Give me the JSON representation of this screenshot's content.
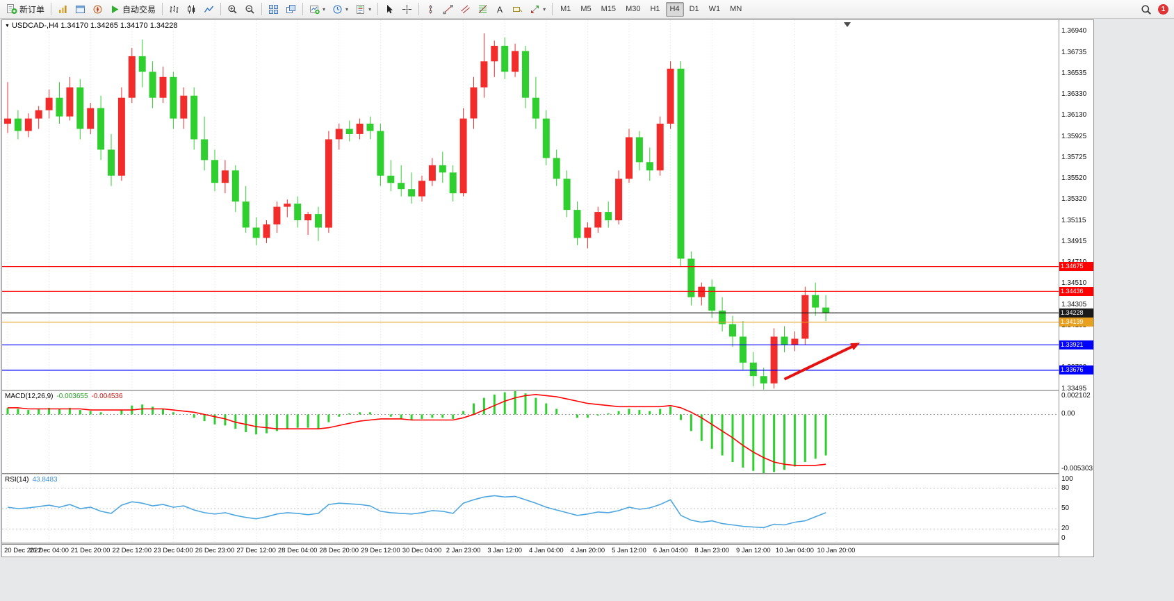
{
  "toolbar": {
    "notification_count": "1",
    "groups": [
      {
        "buttons": [
          {
            "name": "new-order",
            "icon": "new-order",
            "label": "新订单"
          }
        ]
      },
      {
        "buttons": [
          {
            "name": "market-watch",
            "icon": "market-watch"
          },
          {
            "name": "data-window",
            "icon": "data-window"
          },
          {
            "name": "navigator",
            "icon": "navigator"
          },
          {
            "name": "auto-trading",
            "icon": "auto-trading",
            "label": "自动交易"
          }
        ]
      },
      {
        "buttons": [
          {
            "name": "bar-chart-mode",
            "icon": "bars"
          },
          {
            "name": "candle-chart-mode",
            "icon": "candles"
          },
          {
            "name": "line-chart-mode",
            "icon": "line"
          }
        ]
      },
      {
        "buttons": [
          {
            "name": "zoom-in",
            "icon": "zoom-in"
          },
          {
            "name": "zoom-out",
            "icon": "zoom-out"
          }
        ]
      },
      {
        "buttons": [
          {
            "name": "tile-windows",
            "icon": "tile"
          },
          {
            "name": "cascade-windows",
            "icon": "cascade"
          }
        ]
      },
      {
        "buttons": [
          {
            "name": "new-chart",
            "icon": "new-chart",
            "dropdown": true
          },
          {
            "name": "periods",
            "icon": "clock",
            "dropdown": true
          },
          {
            "name": "templates",
            "icon": "template",
            "dropdown": true
          }
        ]
      },
      {
        "buttons": [
          {
            "name": "cursor",
            "icon": "cursor"
          },
          {
            "name": "crosshair",
            "icon": "crosshair"
          }
        ]
      },
      {
        "buttons": [
          {
            "name": "vertical-line",
            "icon": "vline"
          },
          {
            "name": "trendline",
            "icon": "trendline"
          },
          {
            "name": "equidistant-channel",
            "icon": "channel"
          },
          {
            "name": "fibonacci",
            "icon": "fibo"
          },
          {
            "name": "text",
            "icon": "text"
          },
          {
            "name": "text-label",
            "icon": "label"
          },
          {
            "name": "arrows",
            "icon": "arrows",
            "dropdown": true
          }
        ]
      },
      {
        "buttons": [
          {
            "name": "timeframe-m1",
            "label": "M1",
            "tf": true
          },
          {
            "name": "timeframe-m5",
            "label": "M5",
            "tf": true
          },
          {
            "name": "timeframe-m15",
            "label": "M15",
            "tf": true
          },
          {
            "name": "timeframe-m30",
            "label": "M30",
            "tf": true
          },
          {
            "name": "timeframe-h1",
            "label": "H1",
            "tf": true
          },
          {
            "name": "timeframe-h4",
            "label": "H4",
            "tf": true,
            "active": true
          },
          {
            "name": "timeframe-d1",
            "label": "D1",
            "tf": true
          },
          {
            "name": "timeframe-w1",
            "label": "W1",
            "tf": true
          },
          {
            "name": "timeframe-mn",
            "label": "MN",
            "tf": true
          }
        ]
      }
    ]
  },
  "chart": {
    "symbol_label": "USDCAD-,H4",
    "ohlc_label": "1.34170 1.34265 1.34170 1.34228",
    "price_axis_ticks": [
      "1.36940",
      "1.36735",
      "1.36535",
      "1.36330",
      "1.36130",
      "1.35925",
      "1.35725",
      "1.35520",
      "1.35320",
      "1.35115",
      "1.34915",
      "1.34710",
      "1.34510",
      "1.34305",
      "1.34105",
      "1.33900",
      "1.33700",
      "1.33495"
    ]
  },
  "indicators": {
    "macd": {
      "name": "MACD(12,26,9)",
      "value1": "-0.003655",
      "value2": "-0.004536"
    },
    "rsi": {
      "name": "RSI(14)",
      "value": "43.8483"
    }
  },
  "chart_data": [
    {
      "type": "candlestick",
      "symbol": "USDCAD-",
      "timeframe": "H4",
      "up_color": "#f22b2b",
      "down_color": "#2fcf2f",
      "ylim": [
        1.33488,
        1.37047
      ],
      "x_label_every": 4,
      "x_labels": [
        "20 Dec 2022",
        "21 Dec 04:00",
        "21 Dec 20:00",
        "22 Dec 12:00",
        "23 Dec 04:00",
        "26 Dec 23:00",
        "27 Dec 12:00",
        "28 Dec 04:00",
        "28 Dec 20:00",
        "29 Dec 12:00",
        "30 Dec 04:00",
        "2 Jan 23:00",
        "3 Jan 12:00",
        "4 Jan 04:00",
        "4 Jan 20:00",
        "5 Jan 12:00",
        "6 Jan 04:00",
        "8 Jan 23:00",
        "9 Jan 12:00",
        "10 Jan 04:00",
        "10 Jan 20:00"
      ],
      "ohlc": [
        [
          1.3605,
          1.3645,
          1.3596,
          1.361
        ],
        [
          1.361,
          1.3618,
          1.359,
          1.3598
        ],
        [
          1.3598,
          1.3615,
          1.3592,
          1.361
        ],
        [
          1.361,
          1.3622,
          1.36,
          1.3618
        ],
        [
          1.3618,
          1.3638,
          1.361,
          1.363
        ],
        [
          1.363,
          1.3645,
          1.3605,
          1.3612
        ],
        [
          1.3612,
          1.365,
          1.3608,
          1.364
        ],
        [
          1.364,
          1.3648,
          1.359,
          1.36
        ],
        [
          1.36,
          1.3625,
          1.3595,
          1.362
        ],
        [
          1.362,
          1.3632,
          1.357,
          1.358
        ],
        [
          1.358,
          1.3595,
          1.3545,
          1.3555
        ],
        [
          1.3555,
          1.364,
          1.355,
          1.363
        ],
        [
          1.363,
          1.3678,
          1.3625,
          1.367
        ],
        [
          1.367,
          1.3686,
          1.364,
          1.3655
        ],
        [
          1.3655,
          1.3665,
          1.362,
          1.363
        ],
        [
          1.363,
          1.366,
          1.3625,
          1.365
        ],
        [
          1.365,
          1.3655,
          1.36,
          1.361
        ],
        [
          1.361,
          1.364,
          1.36,
          1.3632
        ],
        [
          1.3632,
          1.364,
          1.358,
          1.359
        ],
        [
          1.359,
          1.3612,
          1.356,
          1.357
        ],
        [
          1.357,
          1.358,
          1.354,
          1.3548
        ],
        [
          1.3548,
          1.357,
          1.3538,
          1.356
        ],
        [
          1.356,
          1.3565,
          1.352,
          1.353
        ],
        [
          1.353,
          1.3545,
          1.35,
          1.3505
        ],
        [
          1.3505,
          1.3515,
          1.3488,
          1.3495
        ],
        [
          1.3495,
          1.3512,
          1.349,
          1.3508
        ],
        [
          1.3508,
          1.353,
          1.35,
          1.3525
        ],
        [
          1.3525,
          1.3532,
          1.3515,
          1.3528
        ],
        [
          1.3528,
          1.3535,
          1.3505,
          1.3512
        ],
        [
          1.3512,
          1.352,
          1.3498,
          1.3518
        ],
        [
          1.3518,
          1.3525,
          1.3492,
          1.3505
        ],
        [
          1.3505,
          1.3598,
          1.35,
          1.359
        ],
        [
          1.359,
          1.3605,
          1.358,
          1.36
        ],
        [
          1.36,
          1.3608,
          1.3588,
          1.3595
        ],
        [
          1.3595,
          1.361,
          1.359,
          1.3605
        ],
        [
          1.3605,
          1.3612,
          1.359,
          1.3598
        ],
        [
          1.3598,
          1.3605,
          1.3545,
          1.3555
        ],
        [
          1.3555,
          1.357,
          1.354,
          1.3548
        ],
        [
          1.3548,
          1.3565,
          1.3535,
          1.3542
        ],
        [
          1.3542,
          1.3558,
          1.3528,
          1.3535
        ],
        [
          1.3535,
          1.3555,
          1.353,
          1.355
        ],
        [
          1.355,
          1.3572,
          1.3545,
          1.3565
        ],
        [
          1.3565,
          1.3578,
          1.3548,
          1.3558
        ],
        [
          1.3558,
          1.3565,
          1.353,
          1.3538
        ],
        [
          1.3538,
          1.362,
          1.3535,
          1.361
        ],
        [
          1.361,
          1.365,
          1.36,
          1.364
        ],
        [
          1.364,
          1.3692,
          1.363,
          1.3665
        ],
        [
          1.3665,
          1.3685,
          1.365,
          1.368
        ],
        [
          1.368,
          1.3688,
          1.3648,
          1.3655
        ],
        [
          1.3655,
          1.3682,
          1.365,
          1.3675
        ],
        [
          1.3675,
          1.368,
          1.362,
          1.363
        ],
        [
          1.363,
          1.365,
          1.36,
          1.361
        ],
        [
          1.361,
          1.3618,
          1.3565,
          1.3572
        ],
        [
          1.3572,
          1.358,
          1.3545,
          1.3552
        ],
        [
          1.3552,
          1.356,
          1.3515,
          1.3522
        ],
        [
          1.3522,
          1.353,
          1.3488,
          1.3495
        ],
        [
          1.3495,
          1.351,
          1.3485,
          1.3505
        ],
        [
          1.3505,
          1.3525,
          1.35,
          1.352
        ],
        [
          1.352,
          1.353,
          1.3505,
          1.3512
        ],
        [
          1.3512,
          1.356,
          1.3508,
          1.3552
        ],
        [
          1.3552,
          1.36,
          1.3548,
          1.3592
        ],
        [
          1.3592,
          1.3598,
          1.356,
          1.3568
        ],
        [
          1.3568,
          1.3582,
          1.355,
          1.356
        ],
        [
          1.356,
          1.3612,
          1.3555,
          1.3605
        ],
        [
          1.3605,
          1.3665,
          1.36,
          1.3658
        ],
        [
          1.3658,
          1.3665,
          1.3468,
          1.3475
        ],
        [
          1.3475,
          1.3482,
          1.343,
          1.3438
        ],
        [
          1.3438,
          1.3452,
          1.343,
          1.3448
        ],
        [
          1.3448,
          1.3455,
          1.3418,
          1.3425
        ],
        [
          1.3425,
          1.3438,
          1.3405,
          1.3412
        ],
        [
          1.3412,
          1.342,
          1.339,
          1.34
        ],
        [
          1.34,
          1.3415,
          1.3368,
          1.3375
        ],
        [
          1.3375,
          1.3385,
          1.3352,
          1.3362
        ],
        [
          1.3362,
          1.337,
          1.3349,
          1.3355
        ],
        [
          1.3355,
          1.3408,
          1.335,
          1.34
        ],
        [
          1.34,
          1.341,
          1.3385,
          1.3392
        ],
        [
          1.3392,
          1.3405,
          1.3386,
          1.3398
        ],
        [
          1.3398,
          1.3448,
          1.3392,
          1.344
        ],
        [
          1.344,
          1.3452,
          1.342,
          1.3428
        ],
        [
          1.3428,
          1.344,
          1.3415,
          1.34228
        ]
      ],
      "hlines": [
        {
          "value": 1.34675,
          "color": "#ff0000",
          "label": "1.34675"
        },
        {
          "value": 1.34436,
          "color": "#ff0000",
          "label": "1.34436"
        },
        {
          "value": 1.34228,
          "color": "#1a1a1a",
          "label": "1.34228",
          "style": "current-price"
        },
        {
          "value": 1.34139,
          "color": "#e8a020",
          "label": "1.34139"
        },
        {
          "value": 1.33921,
          "color": "#0000ff",
          "label": "1.33921"
        },
        {
          "value": 1.33676,
          "color": "#0000ff",
          "label": "1.33676"
        }
      ],
      "arrow": {
        "from_bar": 75,
        "from_price": 1.3359,
        "to_bar": 82.3,
        "to_price": 1.3394,
        "color": "#e51212"
      }
    },
    {
      "type": "macd",
      "name": "MACD(12,26,9)",
      "histogram_color": "#2fcf2f",
      "signal_color": "#ff0000",
      "ylim": [
        -0.005303,
        0.002102
      ],
      "yticks": [
        {
          "v": 0.002102,
          "label": "0.002102"
        },
        {
          "v": 0,
          "label": "0.00"
        },
        {
          "v": -0.005303,
          "label": "-0.005303"
        }
      ],
      "histogram": [
        0.0006,
        0.0005,
        0.0004,
        0.0005,
        0.0006,
        0.0005,
        0.0006,
        0.0004,
        0.0003,
        0.0002,
        0.0,
        0.0004,
        0.0008,
        0.0009,
        0.0007,
        0.0005,
        0.0002,
        0.0,
        -0.0003,
        -0.0006,
        -0.0009,
        -0.001,
        -0.0013,
        -0.0016,
        -0.0018,
        -0.0017,
        -0.0015,
        -0.0013,
        -0.0012,
        -0.0012,
        -0.0013,
        -0.0007,
        -0.0002,
        0.0001,
        0.0002,
        0.0002,
        0.0,
        -0.0002,
        -0.0004,
        -0.0005,
        -0.0004,
        -0.0003,
        -0.0003,
        -0.0004,
        0.0003,
        0.001,
        0.0015,
        0.0018,
        0.002,
        0.0021,
        0.0019,
        0.0015,
        0.001,
        0.0005,
        0.0,
        -0.0003,
        -0.0003,
        -0.0001,
        0.0001,
        0.0003,
        0.0005,
        0.0004,
        0.0003,
        0.0005,
        0.0007,
        -0.0005,
        -0.0015,
        -0.0024,
        -0.0031,
        -0.0037,
        -0.0043,
        -0.0048,
        -0.0051,
        -0.0053,
        -0.0052,
        -0.005,
        -0.0047,
        -0.0043,
        -0.004,
        -0.0037
      ],
      "signal": [
        0.0006,
        0.0006,
        0.0005,
        0.0005,
        0.0005,
        0.0005,
        0.0005,
        0.0005,
        0.0004,
        0.0004,
        0.0004,
        0.0004,
        0.0004,
        0.0005,
        0.0005,
        0.0005,
        0.0004,
        0.0003,
        0.0002,
        0.0,
        -0.0002,
        -0.0004,
        -0.0007,
        -0.0009,
        -0.0011,
        -0.0012,
        -0.0013,
        -0.0013,
        -0.0013,
        -0.0013,
        -0.0013,
        -0.0012,
        -0.001,
        -0.0008,
        -0.0006,
        -0.0005,
        -0.0004,
        -0.0004,
        -0.0004,
        -0.0005,
        -0.0005,
        -0.0005,
        -0.0005,
        -0.0005,
        -0.0003,
        0.0,
        0.0004,
        0.0008,
        0.0012,
        0.0015,
        0.0017,
        0.0018,
        0.0017,
        0.0016,
        0.0014,
        0.0012,
        0.001,
        0.0009,
        0.0008,
        0.0007,
        0.0007,
        0.0007,
        0.0007,
        0.0007,
        0.0008,
        0.0006,
        0.0002,
        -0.0003,
        -0.0009,
        -0.0015,
        -0.0021,
        -0.0028,
        -0.0034,
        -0.0039,
        -0.0043,
        -0.0045,
        -0.0046,
        -0.0046,
        -0.0046,
        -0.0045
      ]
    },
    {
      "type": "rsi",
      "name": "RSI(14)",
      "line_color": "#4da6e0",
      "ylim": [
        0,
        100
      ],
      "levels": [
        80,
        50,
        20
      ],
      "yticks": [
        {
          "v": 100,
          "label": "100"
        },
        {
          "v": 80,
          "label": "80"
        },
        {
          "v": 50,
          "label": "50"
        },
        {
          "v": 20,
          "label": "20"
        },
        {
          "v": 0,
          "label": "0"
        }
      ],
      "values": [
        52,
        50,
        51,
        53,
        55,
        52,
        56,
        50,
        52,
        46,
        43,
        55,
        60,
        58,
        54,
        56,
        52,
        54,
        48,
        44,
        42,
        44,
        40,
        37,
        35,
        38,
        42,
        44,
        43,
        41,
        43,
        56,
        58,
        57,
        56,
        54,
        46,
        44,
        43,
        42,
        44,
        47,
        46,
        43,
        58,
        63,
        67,
        69,
        67,
        68,
        63,
        58,
        52,
        48,
        44,
        40,
        42,
        45,
        44,
        47,
        52,
        49,
        51,
        56,
        63,
        40,
        33,
        30,
        32,
        28,
        26,
        24,
        23,
        22,
        27,
        26,
        30,
        32,
        38,
        44
      ]
    }
  ]
}
